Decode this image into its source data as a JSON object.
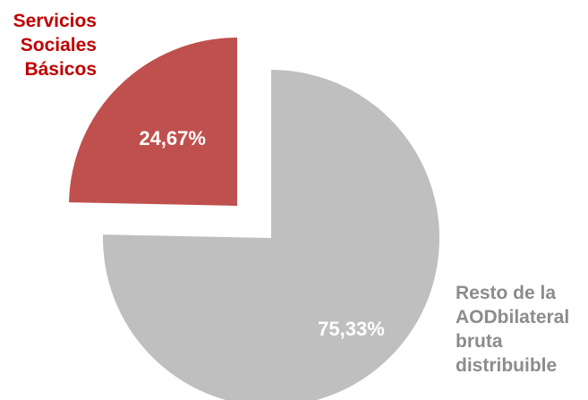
{
  "chart_data": {
    "type": "pie",
    "exploded": true,
    "slices": [
      {
        "name": "Servicios Sociales Básicos",
        "value": 24.67,
        "value_label": "24,67%",
        "color": "#c0504d"
      },
      {
        "name": "Resto de la AOD bilateral bruta distribuible",
        "value": 75.33,
        "value_label": "75,33%",
        "color": "#bfbfbf"
      }
    ],
    "labels": {
      "servicios": [
        "Servicios",
        "Sociales",
        "Básicos"
      ],
      "resto": [
        "Resto de la",
        "AODbilateral",
        "bruta",
        "distribuible"
      ]
    },
    "label_colors": {
      "servicios": "#c00000",
      "resto": "#8c8c8c"
    },
    "value_label_color": "#ffffff"
  }
}
